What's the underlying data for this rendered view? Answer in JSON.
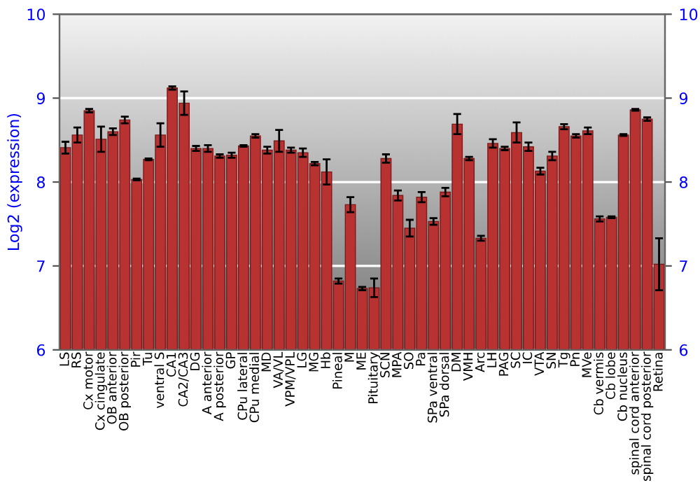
{
  "chart_data": {
    "type": "bar",
    "ylabel": "Log2 (expression)",
    "categories": [
      "LS",
      "RS",
      "Cx motor",
      "Cx cingulate",
      "OB anterior",
      "OB posterior",
      "Pir",
      "Tu",
      "ventral S",
      "CA1",
      "CA2/CA3",
      "DG",
      "A anterior",
      "A posterior",
      "GP",
      "CPu lateral",
      "CPu medial",
      "MD",
      "VA/VL",
      "VPM/VPL",
      "LG",
      "MG",
      "Hb",
      "Pineal",
      "M",
      "ME",
      "Pituitary",
      "SCN",
      "MPA",
      "SO",
      "Pa",
      "SPa ventral",
      "SPa dorsal",
      "DM",
      "VMH",
      "Arc",
      "LH",
      "PAG",
      "SC",
      "IC",
      "VTA",
      "SN",
      "Tg",
      "Pn",
      "MVe",
      "Cb vermis",
      "Cb lobe",
      "Cb nucleus",
      "spinal cord anterior",
      "spinal cord posterior",
      "Retina"
    ],
    "values": [
      8.41,
      8.56,
      8.85,
      8.51,
      8.6,
      8.74,
      8.03,
      8.27,
      8.56,
      9.12,
      8.94,
      8.4,
      8.4,
      8.31,
      8.32,
      8.43,
      8.55,
      8.38,
      8.49,
      8.38,
      8.35,
      8.22,
      8.12,
      6.82,
      7.73,
      6.73,
      6.74,
      8.28,
      7.84,
      7.45,
      7.82,
      7.53,
      7.88,
      8.69,
      8.28,
      7.33,
      8.46,
      8.4,
      8.59,
      8.42,
      8.13,
      8.31,
      8.66,
      8.55,
      8.61,
      7.56,
      7.58,
      8.56,
      8.86,
      8.75,
      7.02
    ],
    "errors": [
      0.07,
      0.09,
      0.02,
      0.15,
      0.04,
      0.04,
      0.01,
      0.01,
      0.14,
      0.02,
      0.14,
      0.03,
      0.04,
      0.02,
      0.03,
      0.01,
      0.02,
      0.04,
      0.13,
      0.03,
      0.05,
      0.02,
      0.15,
      0.03,
      0.09,
      0.02,
      0.11,
      0.05,
      0.06,
      0.1,
      0.06,
      0.04,
      0.05,
      0.12,
      0.02,
      0.03,
      0.05,
      0.02,
      0.12,
      0.05,
      0.04,
      0.05,
      0.03,
      0.02,
      0.04,
      0.03,
      0.01,
      0.01,
      0.01,
      0.02,
      0.31
    ],
    "color": "#b83232",
    "ylim": [
      6,
      10
    ],
    "yticks": [
      6,
      7,
      8,
      9,
      10
    ],
    "y2lim": [
      6,
      10
    ],
    "y2ticks": [
      6,
      7,
      8,
      9,
      10
    ],
    "grid": "y"
  }
}
